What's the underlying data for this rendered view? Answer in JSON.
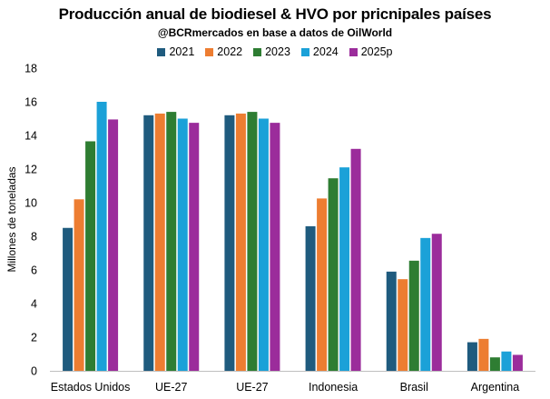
{
  "chart_data": {
    "type": "bar",
    "title": "Producción anual de biodiesel & HVO por pricnipales países",
    "subtitle": "@BCRmercados en base a datos de OilWorld",
    "xlabel": "",
    "ylabel": "Millones de toneladas",
    "ylim": [
      0,
      18
    ],
    "yticks": [
      "0",
      "2",
      "4",
      "6",
      "8",
      "10",
      "12",
      "14",
      "16",
      "18"
    ],
    "grid": false,
    "legend_position": "top",
    "categories": [
      "Estados Unidos",
      "UE-27",
      "UE-27",
      "Indonesia",
      "Brasil",
      "Argentina"
    ],
    "series": [
      {
        "name": "2021",
        "color": "#1f5b7e",
        "values": [
          8.5,
          15.2,
          15.2,
          8.6,
          5.9,
          1.7
        ]
      },
      {
        "name": "2022",
        "color": "#ed7d31",
        "values": [
          10.2,
          15.3,
          15.3,
          10.25,
          5.45,
          1.9
        ]
      },
      {
        "name": "2023",
        "color": "#2e7d32",
        "values": [
          13.65,
          15.4,
          15.4,
          11.45,
          6.55,
          0.8
        ]
      },
      {
        "name": "2024",
        "color": "#1ba1d8",
        "values": [
          16.0,
          15.0,
          15.0,
          12.1,
          7.9,
          1.15
        ]
      },
      {
        "name": "2025p",
        "color": "#9b2c9b",
        "values": [
          14.95,
          14.75,
          14.75,
          13.2,
          8.15,
          0.95
        ]
      }
    ]
  }
}
